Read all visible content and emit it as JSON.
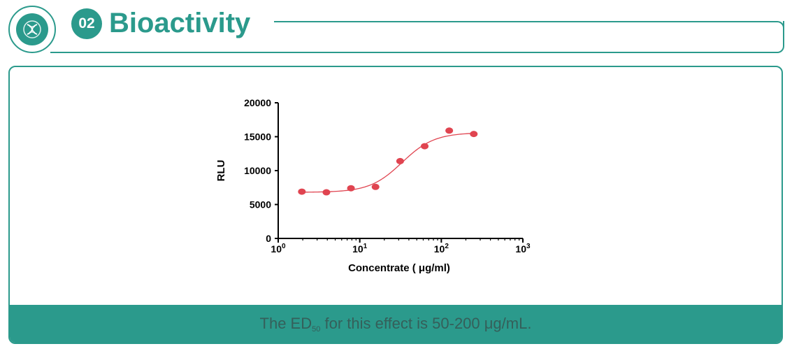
{
  "header": {
    "badge_number": "02",
    "title": "Bioactivity",
    "accent_color": "#2b9a8c",
    "logo_icon": "dna-molecule-icon"
  },
  "caption": {
    "prefix": "The ED",
    "subscript": "50",
    "suffix": " for this effect is 50-200 μg/mL."
  },
  "chart_data": {
    "type": "scatter",
    "xlabel": "Concentrate ( μg/ml)",
    "ylabel": "RLU",
    "x_scale": "log10",
    "xlim": [
      1,
      1000
    ],
    "ylim": [
      0,
      20000
    ],
    "x_ticks": [
      {
        "base": "10",
        "exp": "0"
      },
      {
        "base": "10",
        "exp": "1"
      },
      {
        "base": "10",
        "exp": "2"
      },
      {
        "base": "10",
        "exp": "3"
      }
    ],
    "y_ticks": [
      "0",
      "5000",
      "10000",
      "15000",
      "20000"
    ],
    "grid": false,
    "points": [
      {
        "x": 1.95,
        "y": 6900
      },
      {
        "x": 3.9,
        "y": 6800
      },
      {
        "x": 7.8,
        "y": 7400
      },
      {
        "x": 15.6,
        "y": 7600
      },
      {
        "x": 31.25,
        "y": 11400
      },
      {
        "x": 62.5,
        "y": 13600
      },
      {
        "x": 125,
        "y": 15900
      },
      {
        "x": 250,
        "y": 15400
      }
    ],
    "fit": {
      "bottom": 6800,
      "top": 15600,
      "ec50": 33,
      "hill": 2.2,
      "x_range": [
        1.95,
        250
      ]
    },
    "point_color": "#e04450",
    "curve_color": "#e04450"
  }
}
